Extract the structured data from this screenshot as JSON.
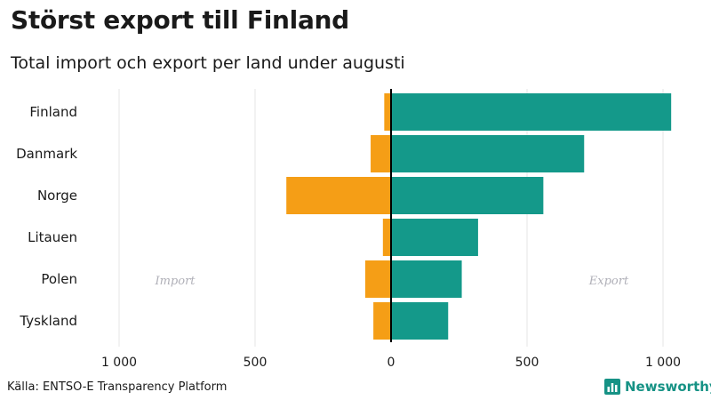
{
  "title": "Störst export till Finland",
  "subtitle": "Total import och export per land under augusti",
  "source": "Källa: ENTSO-E Transparency Platform",
  "brand": "Newsworthy",
  "colors": {
    "import": "#f59e16",
    "export": "#14998a",
    "grid": "#e6e6e6",
    "axis": "#000000",
    "side_label": "#b0b0b8",
    "brand": "#169285"
  },
  "chart_data": {
    "type": "bar",
    "orientation": "horizontal-diverging",
    "categories": [
      "Finland",
      "Danmark",
      "Norge",
      "Litauen",
      "Polen",
      "Tyskland"
    ],
    "series": [
      {
        "name": "Import",
        "values": [
          25,
          75,
          385,
          30,
          95,
          65
        ]
      },
      {
        "name": "Export",
        "values": [
          1030,
          710,
          560,
          320,
          260,
          210
        ]
      }
    ],
    "xlim": [
      -1000,
      1000
    ],
    "xticks": [
      -1000,
      -500,
      0,
      500,
      1000
    ],
    "xtick_labels": [
      "1 000",
      "500",
      "0",
      "500",
      "1 000"
    ],
    "side_labels": {
      "left": "Import",
      "right": "Export"
    },
    "grid": true,
    "legend": "none"
  }
}
